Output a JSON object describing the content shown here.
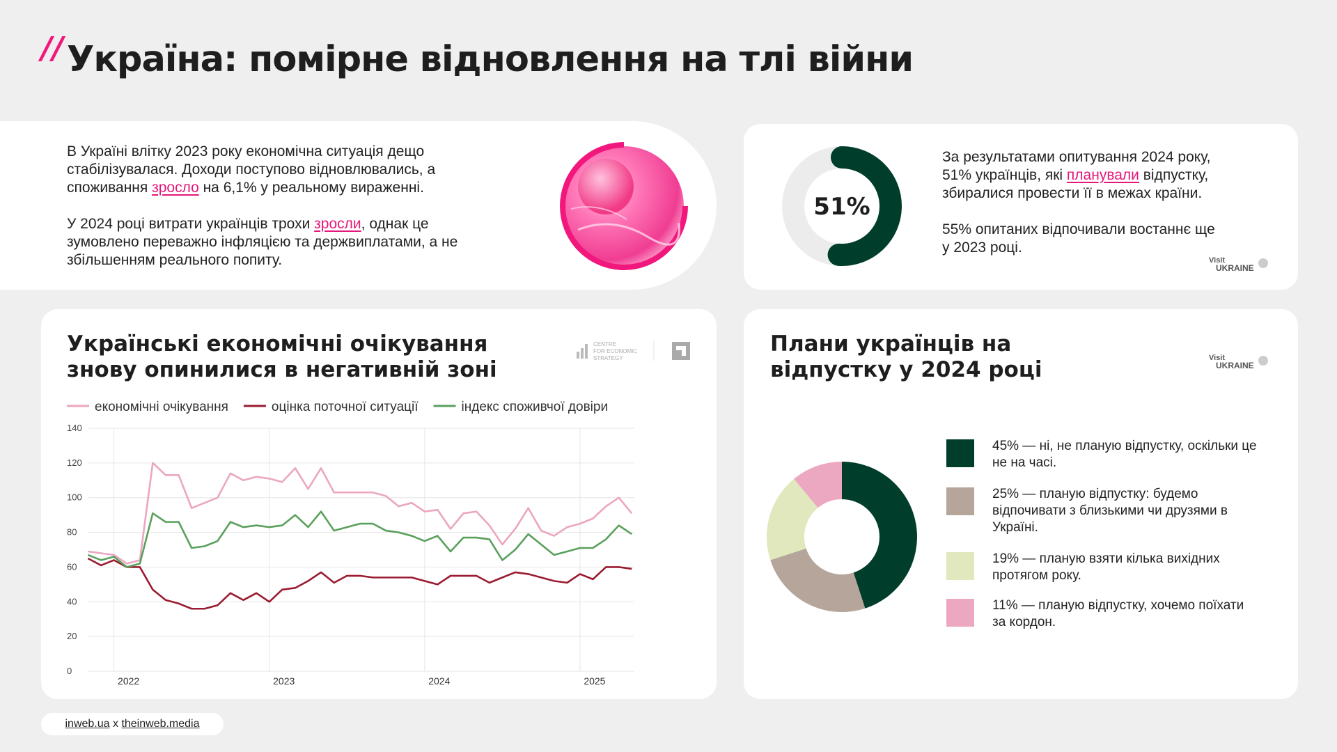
{
  "header": {
    "mark": "//",
    "title": "Україна: помірне відновлення на тлі війни"
  },
  "intro": {
    "paragraphs": [
      {
        "before": "В Україні влітку 2023 року економічна ситуація дещо стабілізувалася. Доходи поступово відновлювались, а споживання ",
        "highlight": "зросло",
        "after": " на 6,1% у реальному вираженні."
      },
      {
        "before": "У 2024 році витрати українців трохи ",
        "highlight": "зросли",
        "after": ", однак це зумовлено переважно інфляцією та держвиплатами, а не збільшенням реального попиту."
      }
    ]
  },
  "survey": {
    "paragraph1": {
      "before": "За результатами опитування 2024 року, 51% українців, які ",
      "highlight": "планували",
      "after": " відпустку, збиралися провести її в межах країни."
    },
    "paragraph2": "55% опитаних відпочивали востаннє ще у 2023 році."
  },
  "logos": {
    "visit": "Visit",
    "ukraine": "UKRAINE",
    "ces": [
      "CENTRE",
      "FOR ECONOMIC",
      "STRATEGY"
    ]
  },
  "footer": {
    "left": "inweb.ua",
    "sep": "x",
    "right": "theinweb.media"
  },
  "chart_data": [
    {
      "type": "gauge",
      "values": [
        51
      ],
      "value_labels": [
        "51%"
      ],
      "ylim": [
        0,
        100
      ],
      "color": "#003d2b",
      "track_color": "#ececec"
    },
    {
      "type": "line",
      "title": "Українські економічні очікування знову опинилися в негативній зоні",
      "x": [
        2021.833,
        2021.917,
        2022,
        2022.083,
        2022.167,
        2022.25,
        2022.333,
        2022.417,
        2022.5,
        2022.583,
        2022.667,
        2022.75,
        2022.833,
        2022.917,
        2023,
        2023.083,
        2023.167,
        2023.25,
        2023.333,
        2023.417,
        2023.5,
        2023.583,
        2023.667,
        2023.75,
        2023.833,
        2023.917,
        2024,
        2024.083,
        2024.167,
        2024.25,
        2024.333,
        2024.417,
        2024.5,
        2024.583,
        2024.667,
        2024.75,
        2024.833,
        2024.917,
        2025,
        2025.083,
        2025.167,
        2025.25,
        2025.333
      ],
      "series": [
        {
          "name": "економічні очікування",
          "color": "#eba6c0",
          "values": [
            69,
            68,
            67,
            62,
            64,
            120,
            113,
            113,
            94,
            97,
            100,
            114,
            110,
            112,
            111,
            109,
            117,
            105,
            117,
            103,
            103,
            103,
            103,
            101,
            95,
            97,
            92,
            93,
            82,
            91,
            92,
            84,
            73,
            82,
            94,
            81,
            78,
            83,
            85,
            88,
            95,
            100,
            91
          ]
        },
        {
          "name": "оцінка поточної ситуації",
          "color": "#9b1b30",
          "values": [
            65,
            61,
            64,
            60,
            60,
            47,
            41,
            39,
            36,
            36,
            38,
            45,
            41,
            45,
            40,
            47,
            48,
            52,
            57,
            51,
            55,
            55,
            54,
            54,
            54,
            54,
            52,
            50,
            55,
            55,
            55,
            51,
            54,
            57,
            56,
            54,
            52,
            51,
            56,
            53,
            60,
            60,
            59
          ]
        },
        {
          "name": "індекс споживчої довіри",
          "color": "#5aa05c",
          "values": [
            67,
            64,
            66,
            60,
            62,
            91,
            86,
            86,
            71,
            72,
            75,
            86,
            83,
            84,
            83,
            84,
            90,
            83,
            92,
            81,
            83,
            85,
            85,
            81,
            80,
            78,
            75,
            78,
            69,
            77,
            77,
            76,
            64,
            70,
            79,
            73,
            67,
            69,
            71,
            71,
            76,
            84,
            79
          ]
        }
      ],
      "xlim": [
        2021.8,
        2025.35
      ],
      "xticks": [
        2022,
        2023,
        2024,
        2025
      ],
      "ylim": [
        0,
        140
      ],
      "yticks": [
        0,
        20,
        40,
        60,
        80,
        100,
        120,
        140
      ],
      "grid": true
    },
    {
      "type": "donut",
      "title": "Плани українців на відпустку у 2024 році",
      "values": [
        45,
        25,
        19,
        11
      ],
      "labels": [
        "45% — ні, не планую відпустку, оскільки це не на часі.",
        "25% — планую відпустку: будемо відпочивати з близькими чи друзями в Україні.",
        "19% — планую взяти кілька вихідних протягом року.",
        "11% — планую відпустку, хочемо поїхати за кордон."
      ],
      "colors": [
        "#003d2b",
        "#b5a59b",
        "#e1e8bd",
        "#eca8c0"
      ]
    }
  ]
}
